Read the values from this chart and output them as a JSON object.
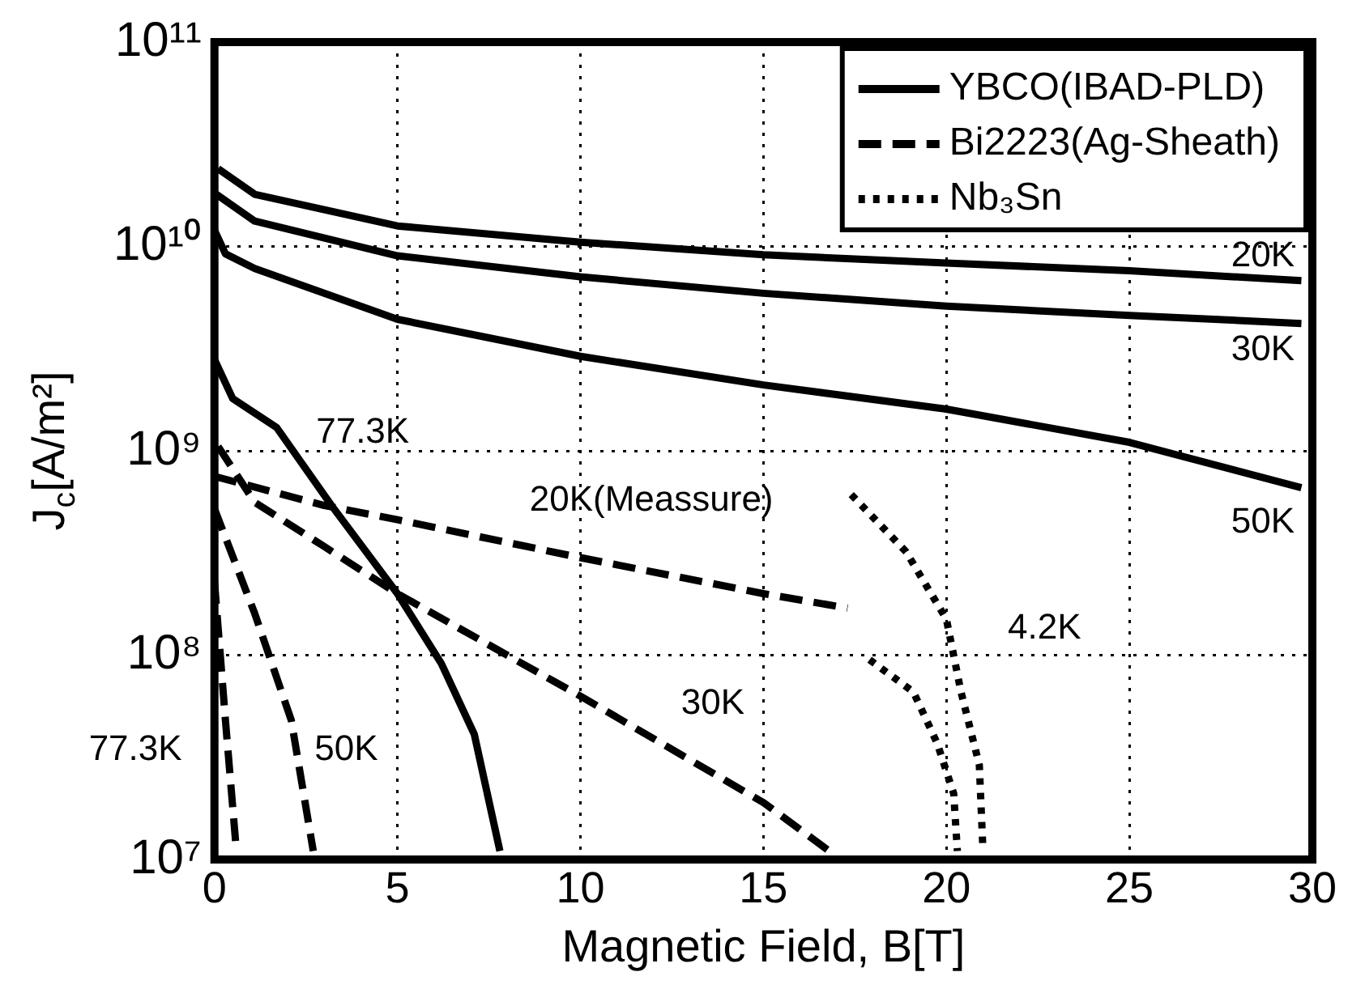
{
  "chart_data": {
    "type": "line",
    "xlabel": "Magnetic Field, B[T]",
    "ylabel": "J$_{c}$[A/m²]",
    "xlim": [
      0,
      30
    ],
    "xticks": [
      0,
      5,
      10,
      15,
      20,
      25,
      30
    ],
    "ylim": [
      10000000.0,
      100000000000.0
    ],
    "yticks": [
      {
        "value": 10000000.0,
        "label": "10⁷"
      },
      {
        "value": 100000000.0,
        "label": "10⁸"
      },
      {
        "value": 1000000000.0,
        "label": "10⁹"
      },
      {
        "value": 10000000000.0,
        "label": "10¹⁰"
      },
      {
        "value": 100000000000.0,
        "label": "10¹¹"
      }
    ],
    "log": "y",
    "grid": true,
    "legend": "top right",
    "marker": "none",
    "series": [
      {
        "name": "YBCO(IBAD-PLD)",
        "color": "#000000",
        "line_style": "solid",
        "x": [
          0.1,
          1.1,
          5,
          10,
          15,
          20,
          25,
          29.7
        ],
        "values": [
          24000000000.0,
          18000000000.0,
          12600000000.0,
          10500000000.0,
          9100000000.0,
          8300000000.0,
          7600000000.0,
          6800000000.0
        ]
      },
      {
        "color": "#000000",
        "line_style": "solid",
        "x": [
          0.05,
          1.1,
          5,
          10,
          15,
          20,
          25,
          29.7
        ],
        "values": [
          18000000000.0,
          13300000000.0,
          9000000000.0,
          7100000000.0,
          5900000000.0,
          5100000000.0,
          4600000000.0,
          4200000000.0
        ]
      },
      {
        "color": "#000000",
        "line_style": "solid",
        "x": [
          0,
          0.3,
          1.1,
          5,
          10,
          15,
          20,
          25,
          29.7
        ],
        "values": [
          12000000000.0,
          9200000000.0,
          7800000000.0,
          4400000000.0,
          2900000000.0,
          2100000000.0,
          1600000000.0,
          1100000000.0,
          660000000.0
        ]
      },
      {
        "color": "#000000",
        "line_style": "solid",
        "x": [
          0,
          0.5,
          1.7,
          3.2,
          5,
          6.2,
          7.1,
          7.8
        ],
        "values": [
          2800000000.0,
          1800000000.0,
          1300000000.0,
          540000000.0,
          200000000.0,
          91000000.0,
          41000000.0,
          11000000.0
        ]
      },
      {
        "name": "Bi2223(Ag-Sheath)",
        "color": "#000000",
        "line_style": "dashed",
        "x": [
          0,
          3,
          5,
          10,
          15,
          17.3
        ],
        "values": [
          750000000.0,
          540000000.0,
          460000000.0,
          300000000.0,
          200000000.0,
          170000000.0
        ]
      },
      {
        "color": "#000000",
        "line_style": "dashed",
        "x": [
          0.1,
          1.1,
          3,
          5,
          10,
          15,
          16.8
        ],
        "values": [
          1050000000.0,
          560000000.0,
          340000000.0,
          200000000.0,
          63000000.0,
          19000000.0,
          11000000.0
        ]
      },
      {
        "color": "#000000",
        "line_style": "dashed",
        "x": [
          0,
          1.1,
          2.1,
          2.7
        ],
        "values": [
          520000000.0,
          160000000.0,
          48000000.0,
          11000000.0
        ]
      },
      {
        "color": "#000000",
        "line_style": "dashed",
        "x": [
          0,
          0.3,
          0.6
        ],
        "values": [
          230000000.0,
          48000000.0,
          11000000.0
        ]
      },
      {
        "name": "Nb₃Sn",
        "color": "#000000",
        "line_style": "dotted",
        "x": [
          17.4,
          18.9,
          20,
          20.4,
          20.9,
          21.0
        ],
        "values": [
          610000000.0,
          320000000.0,
          150000000.0,
          66000000.0,
          29000000.0,
          11000000.0
        ]
      },
      {
        "color": "#000000",
        "line_style": "dotted",
        "x": [
          17.9,
          19.1,
          19.75,
          20.2,
          20.3
        ],
        "values": [
          95000000.0,
          66000000.0,
          37000000.0,
          21000000.0,
          11000000.0
        ]
      }
    ],
    "annotations": [
      "20K",
      "30K",
      "50K",
      "77.3K",
      "20K(Meassure)",
      "30K",
      "50K",
      "77.3K",
      "4.2K"
    ]
  }
}
